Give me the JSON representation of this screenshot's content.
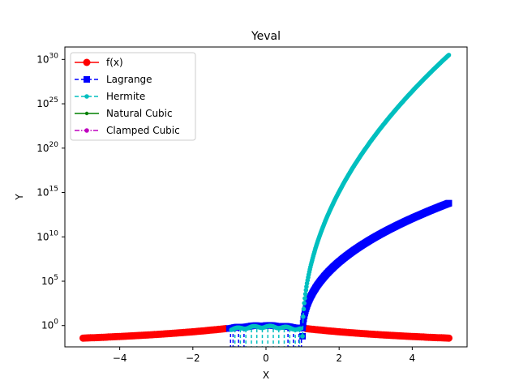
{
  "chart_data": {
    "type": "line",
    "title": "Yeval",
    "xlabel": "X",
    "ylabel": "Y",
    "xlim": [
      -5.5,
      5.5
    ],
    "ylim_log10": [
      -2.4,
      31.4
    ],
    "yscale": "log",
    "grid": false,
    "legend_position": "top-left",
    "x_ticks": [
      -4,
      -2,
      0,
      2,
      4
    ],
    "x_tick_labels": [
      "−4",
      "−2",
      "0",
      "2",
      "4"
    ],
    "y_ticks_exp": [
      0,
      5,
      10,
      15,
      20,
      25,
      30
    ],
    "y_tick_labels": [
      {
        "base": "10",
        "exp": "0"
      },
      {
        "base": "10",
        "exp": "5"
      },
      {
        "base": "10",
        "exp": "10"
      },
      {
        "base": "10",
        "exp": "15"
      },
      {
        "base": "10",
        "exp": "20"
      },
      {
        "base": "10",
        "exp": "25"
      },
      {
        "base": "10",
        "exp": "30"
      }
    ],
    "series": [
      {
        "name": "f(x)",
        "color": "#ff0000",
        "style": "solid",
        "marker": "circle",
        "points": [
          [
            -5,
            0.0385
          ],
          [
            -4,
            0.0588
          ],
          [
            -3,
            0.1
          ],
          [
            -2,
            0.2
          ],
          [
            -1,
            0.5
          ],
          [
            0,
            1.0
          ],
          [
            1,
            0.5
          ],
          [
            2,
            0.2
          ],
          [
            3,
            0.1
          ],
          [
            4,
            0.0588
          ],
          [
            5,
            0.0385
          ]
        ]
      },
      {
        "name": "Lagrange",
        "color": "#0000ff",
        "style": "dashed",
        "marker": "square",
        "points": [
          [
            1.0,
            0.06
          ],
          [
            1.1,
            300
          ],
          [
            1.5,
            200000
          ],
          [
            2,
            30000000
          ],
          [
            2.5,
            1000000000
          ],
          [
            3,
            30000000000.0
          ],
          [
            3.5,
            400000000000.0
          ],
          [
            4,
            3000000000000.0
          ],
          [
            4.5,
            15000000000000.0
          ],
          [
            5,
            70000000000000.0
          ]
        ]
      },
      {
        "name": "Hermite",
        "color": "#00bfbf",
        "style": "dashed",
        "marker": "small-circle",
        "points": [
          [
            1.0,
            0.06
          ],
          [
            1.1,
            100000
          ],
          [
            1.5,
            1000000000000.0
          ],
          [
            2,
            1e+17
          ],
          [
            2.5,
            1e+20
          ],
          [
            3,
            1e+23
          ],
          [
            3.5,
            1e+25
          ],
          [
            4,
            1e+27
          ],
          [
            4.5,
            1e+29
          ],
          [
            5,
            3e+30
          ]
        ]
      },
      {
        "name": "Natural Cubic",
        "color": "#008000",
        "style": "solid",
        "marker": "dot",
        "points": []
      },
      {
        "name": "Clamped Cubic",
        "color": "#bf00bf",
        "style": "dashdot",
        "marker": "small-circle",
        "points": []
      }
    ]
  }
}
